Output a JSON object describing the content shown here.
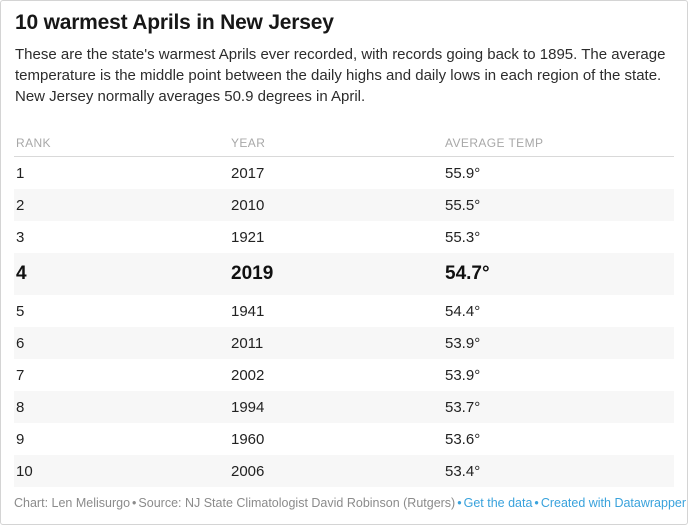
{
  "title": "10 warmest Aprils in New Jersey",
  "description": "These are the state's warmest Aprils ever recorded, with records going back to 1895. The average temperature is the middle point between the daily highs and daily lows in each region of the state. New Jersey normally averages 50.9 degrees in April.",
  "chart_data": {
    "type": "table",
    "title": "10 warmest Aprils in New Jersey",
    "columns": [
      "RANK",
      "YEAR",
      "AVERAGE TEMP"
    ],
    "rows": [
      {
        "rank": "1",
        "year": "2017",
        "temp": "55.9°",
        "highlight": false
      },
      {
        "rank": "2",
        "year": "2010",
        "temp": "55.5°",
        "highlight": false
      },
      {
        "rank": "3",
        "year": "1921",
        "temp": "55.3°",
        "highlight": false
      },
      {
        "rank": "4",
        "year": "2019",
        "temp": "54.7°",
        "highlight": true
      },
      {
        "rank": "5",
        "year": "1941",
        "temp": "54.4°",
        "highlight": false
      },
      {
        "rank": "6",
        "year": "2011",
        "temp": "53.9°",
        "highlight": false
      },
      {
        "rank": "7",
        "year": "2002",
        "temp": "53.9°",
        "highlight": false
      },
      {
        "rank": "8",
        "year": "1994",
        "temp": "53.7°",
        "highlight": false
      },
      {
        "rank": "9",
        "year": "1960",
        "temp": "53.6°",
        "highlight": false
      },
      {
        "rank": "10",
        "year": "2006",
        "temp": "53.4°",
        "highlight": false
      }
    ],
    "layout": {
      "zebra_striping": true,
      "highlighted_rank": 4,
      "legend_position": "none",
      "grid": "off"
    }
  },
  "footer": {
    "credit": "Chart: Len Melisurgo",
    "separator": "•",
    "source": "Source: NJ State Climatologist David Robinson (Rutgers)",
    "get_data_label": "Get the data",
    "datawrapper_label": "Created with Datawrapper"
  },
  "colors": {
    "link_blue": "#39a2dc",
    "zebra_row_bg": "#f7f7f7",
    "header_text": "#a8a8a8",
    "body_text": "#222222",
    "footer_text": "#8b8b8b",
    "card_border": "#d4d4d4"
  }
}
